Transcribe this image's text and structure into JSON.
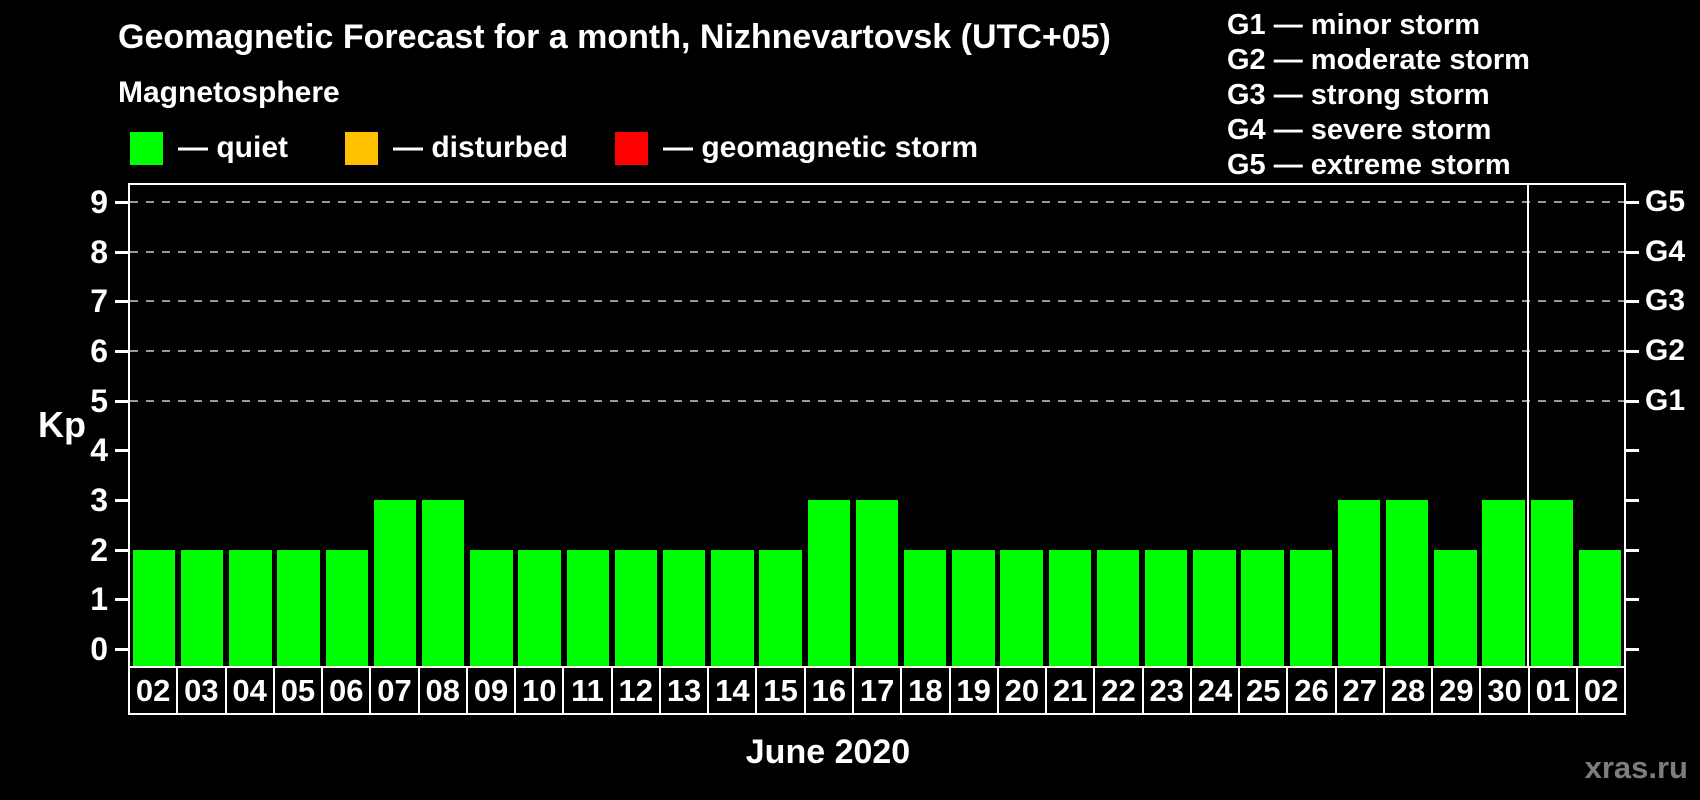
{
  "header": {
    "title": "Geomagnetic Forecast for a month, Nizhnevartovsk (UTC+05)",
    "subtitle": "Magnetosphere"
  },
  "legend": {
    "items": [
      {
        "name": "quiet",
        "label": "— quiet",
        "color": "#00ff00"
      },
      {
        "name": "disturbed",
        "label": "— disturbed",
        "color": "#ffc000"
      },
      {
        "name": "geomagnetic-storm",
        "label": "— geomagnetic storm",
        "color": "#ff0000"
      }
    ]
  },
  "g_scale_legend": {
    "lines": [
      "G1 — minor storm",
      "G2 — moderate storm",
      "G3 — strong storm",
      "G4 — severe storm",
      "G5 — extreme storm"
    ]
  },
  "watermark": "xras.ru",
  "chart_data": {
    "type": "bar",
    "title": "Geomagnetic Forecast for a month, Nizhnevartovsk (UTC+05)",
    "xlabel": "June 2020",
    "ylabel": "Kp",
    "categories": [
      "02",
      "03",
      "04",
      "05",
      "06",
      "07",
      "08",
      "09",
      "10",
      "11",
      "12",
      "13",
      "14",
      "15",
      "16",
      "17",
      "18",
      "19",
      "20",
      "21",
      "22",
      "23",
      "24",
      "25",
      "26",
      "27",
      "28",
      "29",
      "30",
      "01",
      "02"
    ],
    "values": [
      2,
      2,
      2,
      2,
      2,
      3,
      3,
      2,
      2,
      2,
      2,
      2,
      2,
      2,
      3,
      3,
      2,
      2,
      2,
      2,
      2,
      2,
      2,
      2,
      2,
      3,
      3,
      2,
      3,
      3,
      2
    ],
    "bar_color": "#00ff00",
    "background": "#000000",
    "ylim": [
      -0.4,
      9.4
    ],
    "left_axis_ticks": [
      0,
      1,
      2,
      3,
      4,
      5,
      6,
      7,
      8,
      9
    ],
    "right_axis_labels": [
      {
        "kp": 5,
        "label": "G1"
      },
      {
        "kp": 6,
        "label": "G2"
      },
      {
        "kp": 7,
        "label": "G3"
      },
      {
        "kp": 8,
        "label": "G4"
      },
      {
        "kp": 9,
        "label": "G5"
      }
    ],
    "gridlines_at_kp": [
      5,
      6,
      7,
      8,
      9
    ],
    "grid": "dashed horizontal lines at storm levels only",
    "legend_position": "top",
    "month_separator_before_index": 29
  }
}
